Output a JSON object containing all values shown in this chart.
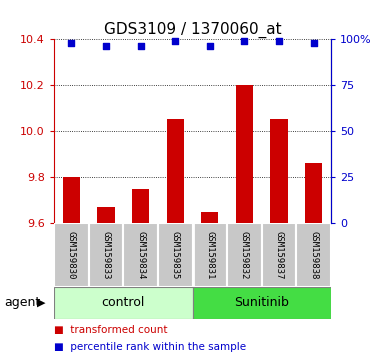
{
  "title": "GDS3109 / 1370060_at",
  "samples": [
    "GSM159830",
    "GSM159833",
    "GSM159834",
    "GSM159835",
    "GSM159831",
    "GSM159832",
    "GSM159837",
    "GSM159838"
  ],
  "red_values": [
    9.8,
    9.67,
    9.75,
    10.05,
    9.65,
    10.2,
    10.05,
    9.86
  ],
  "blue_values": [
    98,
    96,
    96,
    99,
    96,
    99,
    99,
    98
  ],
  "ylim_left": [
    9.6,
    10.4
  ],
  "ylim_right": [
    0,
    100
  ],
  "yticks_left": [
    9.6,
    9.8,
    10.0,
    10.2,
    10.4
  ],
  "yticks_right": [
    0,
    25,
    50,
    75,
    100
  ],
  "ytick_labels_right": [
    "0",
    "25",
    "50",
    "75",
    "100%"
  ],
  "groups": [
    {
      "label": "control",
      "start": 0,
      "end": 4,
      "color": "#ccffcc"
    },
    {
      "label": "Sunitinib",
      "start": 4,
      "end": 8,
      "color": "#44dd44"
    }
  ],
  "bar_color": "#cc0000",
  "dot_color": "#0000cc",
  "plot_bg": "#ffffff",
  "agent_label": "agent",
  "legend_red": "transformed count",
  "legend_blue": "percentile rank within the sample",
  "sample_bg": "#c8c8c8"
}
